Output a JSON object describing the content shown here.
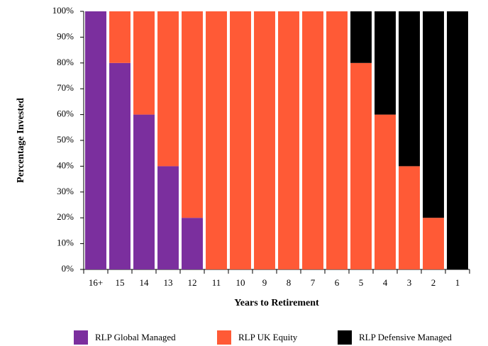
{
  "chart_data": {
    "type": "stacked_bar",
    "x_label": "Years to Retirement",
    "y_label": "Percentage Invested",
    "categories": [
      "16+",
      "15",
      "14",
      "13",
      "12",
      "11",
      "10",
      "9",
      "8",
      "7",
      "6",
      "5",
      "4",
      "3",
      "2",
      "1"
    ],
    "series": [
      {
        "name": "RLP Global Managed",
        "color": "#7b2f9e",
        "values": [
          100,
          80,
          60,
          40,
          20,
          0,
          0,
          0,
          0,
          0,
          0,
          0,
          0,
          0,
          0,
          0
        ]
      },
      {
        "name": "RLP UK Equity",
        "color": "#ff5a36",
        "values": [
          0,
          20,
          40,
          60,
          80,
          100,
          100,
          100,
          100,
          100,
          100,
          80,
          60,
          40,
          20,
          0
        ]
      },
      {
        "name": "RLP Defensive Managed",
        "color": "#000000",
        "values": [
          0,
          0,
          0,
          0,
          0,
          0,
          0,
          0,
          0,
          0,
          0,
          20,
          40,
          60,
          80,
          100
        ]
      }
    ],
    "ylim": [
      0,
      100
    ],
    "yticks": [
      {
        "value": 0,
        "label": "0%"
      },
      {
        "value": 10,
        "label": "10%"
      },
      {
        "value": 20,
        "label": "20%"
      },
      {
        "value": 30,
        "label": "30%"
      },
      {
        "value": 40,
        "label": "40%"
      },
      {
        "value": 50,
        "label": "50%"
      },
      {
        "value": 60,
        "label": "60%"
      },
      {
        "value": 70,
        "label": "70%"
      },
      {
        "value": 80,
        "label": "80%"
      },
      {
        "value": 90,
        "label": "90%"
      },
      {
        "value": 100,
        "label": "100%"
      }
    ],
    "legend": "bottom"
  }
}
